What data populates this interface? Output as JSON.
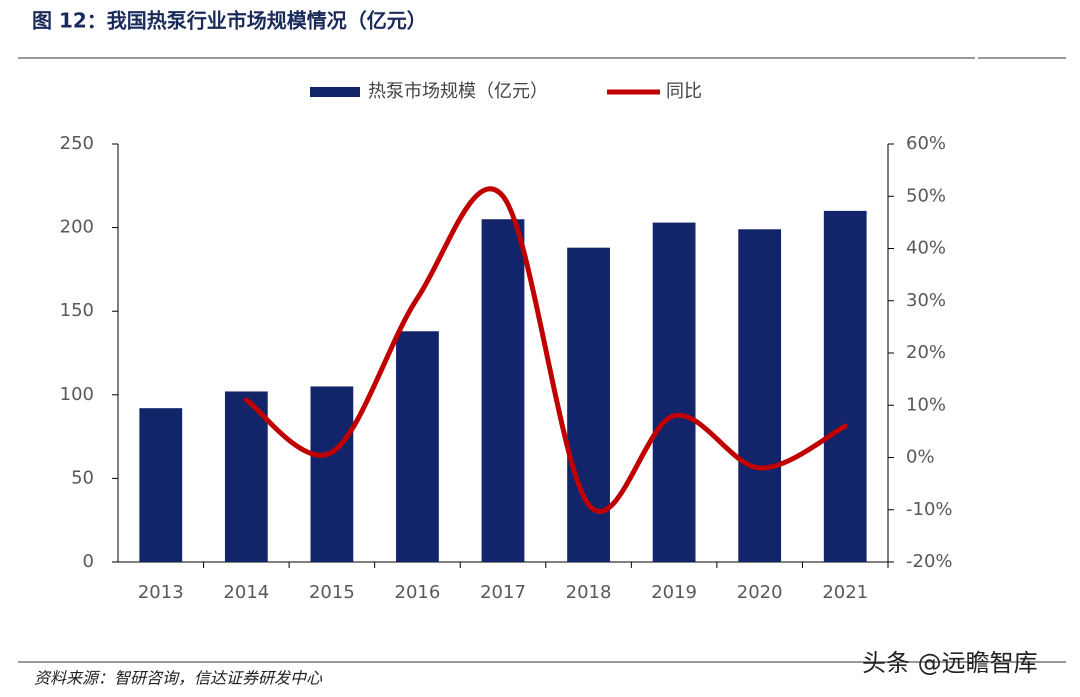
{
  "chart_data": {
    "type": "combo",
    "title": "图 12：我国热泵行业市场规模情况（亿元）",
    "categories": [
      "2013",
      "2014",
      "2015",
      "2016",
      "2017",
      "2018",
      "2019",
      "2020",
      "2021"
    ],
    "series": [
      {
        "name": "热泵市场规模（亿元）",
        "type": "bar",
        "color": "#13256a",
        "values": [
          92,
          102,
          105,
          138,
          205,
          188,
          203,
          199,
          210
        ]
      },
      {
        "name": "同比",
        "type": "line",
        "axis": "y2",
        "color": "#c00000",
        "values": [
          null,
          11,
          1,
          30.5,
          50,
          -9,
          8,
          -2,
          6
        ]
      }
    ],
    "ylim": [
      0,
      250
    ],
    "yticks": [
      0,
      50,
      100,
      150,
      200,
      250
    ],
    "y2lim": [
      -20,
      60
    ],
    "y2ticks": [
      {
        "value": -20,
        "label": "-20%"
      },
      {
        "value": -10,
        "label": "-10%"
      },
      {
        "value": 0,
        "label": "0%"
      },
      {
        "value": 10,
        "label": "10%"
      },
      {
        "value": 20,
        "label": "20%"
      },
      {
        "value": 30,
        "label": "30%"
      },
      {
        "value": 40,
        "label": "40%"
      },
      {
        "value": 50,
        "label": "50%"
      },
      {
        "value": 60,
        "label": "60%"
      }
    ],
    "legend": "top"
  },
  "source": "资料来源：智研咨询，信达证券研发中心",
  "watermark": "头条 @远瞻智库"
}
